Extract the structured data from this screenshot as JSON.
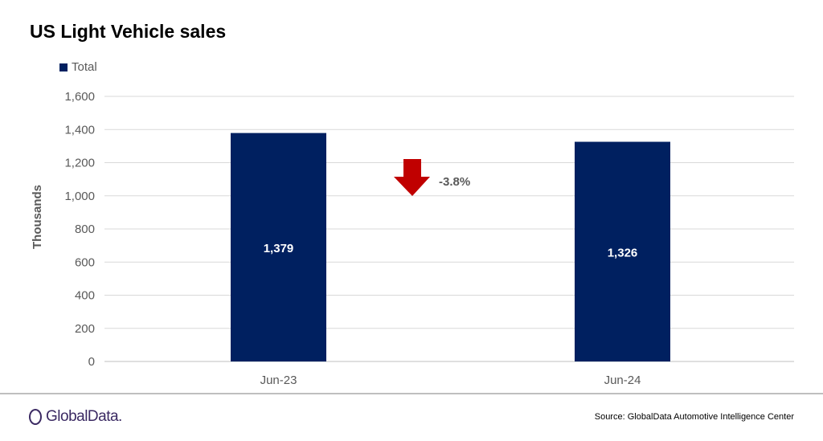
{
  "chart_data": {
    "type": "bar",
    "title": "US Light Vehicle sales",
    "categories": [
      "Jun-23",
      "Jun-24"
    ],
    "series": [
      {
        "name": "Total",
        "values": [
          1379,
          1326
        ],
        "labels": [
          "1,379",
          "1,326"
        ],
        "color": "#002060"
      }
    ],
    "ylabel": "Thousands",
    "xlabel": "",
    "ylim": [
      0,
      1600
    ],
    "yticks": [
      0,
      200,
      400,
      600,
      800,
      1000,
      1200,
      1400,
      1600
    ],
    "ytick_labels": [
      "0",
      "200",
      "400",
      "600",
      "800",
      "1,000",
      "1,200",
      "1,400",
      "1,600"
    ],
    "grid": true,
    "legend": "top-left",
    "annotation": {
      "text": "-3.8%",
      "icon": "down-arrow-icon",
      "color": "#c00000"
    }
  },
  "footer": {
    "logo": "GlobalData.",
    "source": "Source: GlobalData Automotive  Intelligence Center"
  }
}
